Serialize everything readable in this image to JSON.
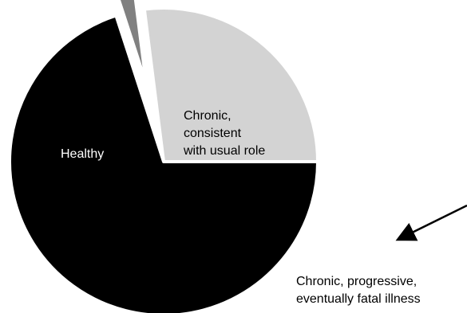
{
  "chart_data": {
    "type": "pie",
    "title": "",
    "start_angle_deg": 0,
    "direction": "counterclockwise",
    "slices": [
      {
        "label": "Chronic, consistent with usual role",
        "label_lines": [
          "Chronic,",
          "consistent",
          "with usual role"
        ],
        "value": 27,
        "color": "#d3d3d3",
        "label_color": "#000000"
      },
      {
        "label": "Chronic, progressive, eventually fatal illness",
        "label_lines": [
          "Chronic, progressive,",
          "eventually fatal illness"
        ],
        "value": 3,
        "color": "#808080",
        "label_color": "#000000",
        "exploded": true,
        "annotated_with_arrow": true
      },
      {
        "label": "Healthy",
        "label_lines": [
          "Healthy"
        ],
        "value": 70,
        "color": "#000000",
        "label_color": "#ffffff"
      }
    ],
    "gap_between_slices": true,
    "legend": "none"
  }
}
